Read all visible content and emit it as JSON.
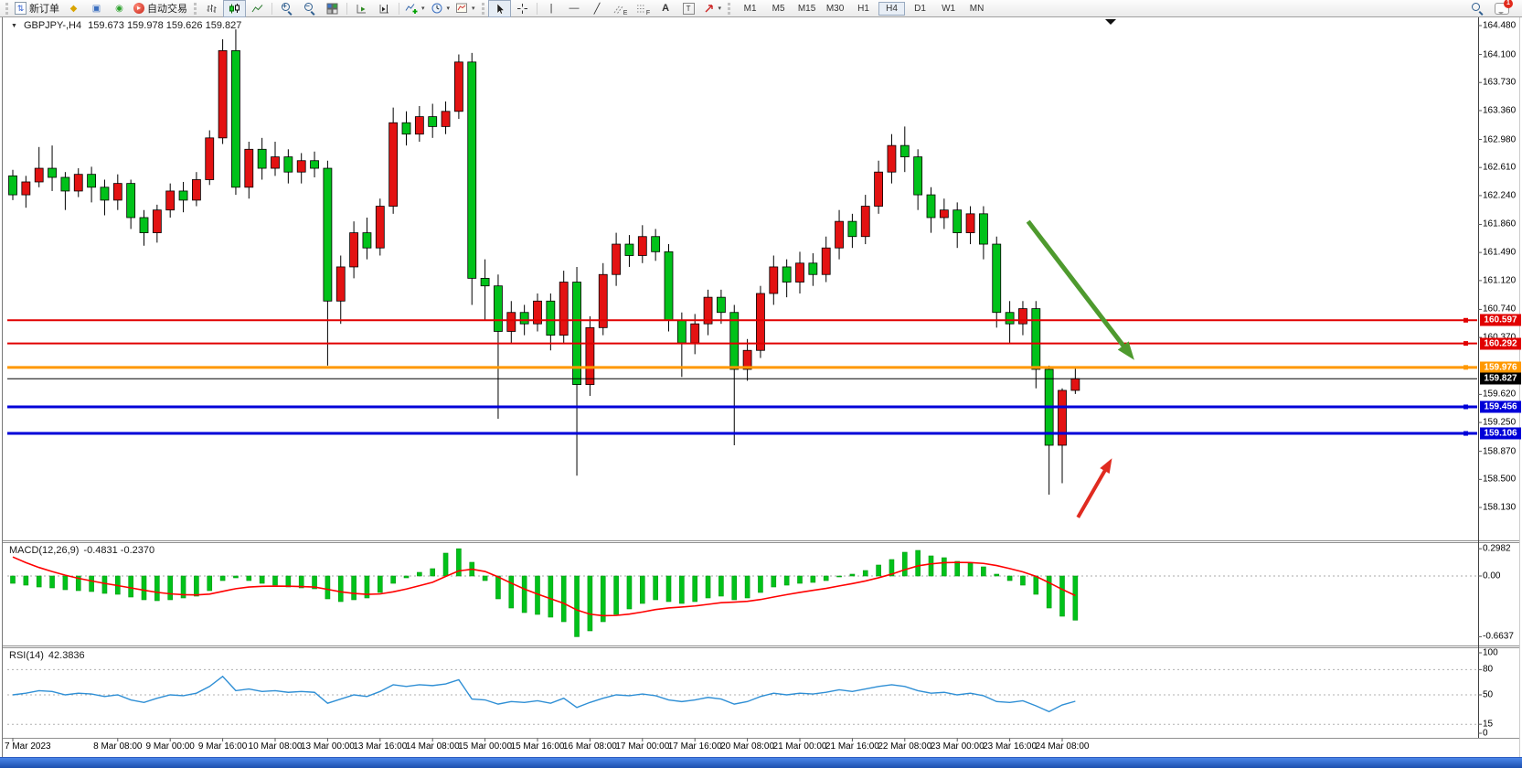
{
  "toolbar": {
    "new_order_label": "新订单",
    "autotrading_label": "自动交易",
    "timeframes": [
      "M1",
      "M5",
      "M15",
      "M30",
      "H1",
      "H4",
      "D1",
      "W1",
      "MN"
    ],
    "active_timeframe": "H4",
    "notification_count": "1",
    "text_tool_label": "A",
    "label_tool_label": "T",
    "channel_tool_label": "E",
    "fibo_tool_label": "F"
  },
  "chart": {
    "symbol_period": "GBPJPY-,H4",
    "ohlc": "159.673 159.978 159.626 159.827"
  },
  "indicators": {
    "macd": {
      "name": "MACD(12,26,9)",
      "values": "-0.4831 -0.2370"
    },
    "rsi": {
      "name": "RSI(14)",
      "value": "42.3836"
    }
  },
  "price_axis": {
    "labels": [
      "164.480",
      "164.100",
      "163.730",
      "163.360",
      "162.980",
      "162.610",
      "162.240",
      "161.860",
      "161.490",
      "161.120",
      "160.740",
      "160.370",
      "159.620",
      "159.250",
      "158.870",
      "158.500",
      "158.130"
    ]
  },
  "macd_axis": {
    "labels": [
      "0.2982",
      "0.00",
      "-0.6637"
    ]
  },
  "rsi_axis": {
    "labels": [
      "100",
      "80",
      "50",
      "15",
      "0"
    ]
  },
  "time_axis": {
    "labels": [
      {
        "text": "7 Mar 2023",
        "bar": 0
      },
      {
        "text": "8 Mar 08:00",
        "bar": 8
      },
      {
        "text": "9 Mar 00:00",
        "bar": 12
      },
      {
        "text": "9 Mar 16:00",
        "bar": 16
      },
      {
        "text": "10 Mar 08:00",
        "bar": 20
      },
      {
        "text": "13 Mar 00:00",
        "bar": 24
      },
      {
        "text": "13 Mar 16:00",
        "bar": 28
      },
      {
        "text": "14 Mar 08:00",
        "bar": 32
      },
      {
        "text": "15 Mar 00:00",
        "bar": 36
      },
      {
        "text": "15 Mar 16:00",
        "bar": 40
      },
      {
        "text": "16 Mar 08:00",
        "bar": 44
      },
      {
        "text": "17 Mar 00:00",
        "bar": 48
      },
      {
        "text": "17 Mar 16:00",
        "bar": 52
      },
      {
        "text": "20 Mar 08:00",
        "bar": 56
      },
      {
        "text": "21 Mar 00:00",
        "bar": 60
      },
      {
        "text": "21 Mar 16:00",
        "bar": 64
      },
      {
        "text": "22 Mar 08:00",
        "bar": 68
      },
      {
        "text": "23 Mar 00:00",
        "bar": 72
      },
      {
        "text": "23 Mar 16:00",
        "bar": 76
      },
      {
        "text": "24 Mar 08:00",
        "bar": 80
      }
    ]
  },
  "levels": [
    {
      "price": 160.597,
      "label": "160.597",
      "color": "#e10000",
      "width": 2
    },
    {
      "price": 160.292,
      "label": "160.292",
      "color": "#e10000",
      "width": 2
    },
    {
      "price": 159.976,
      "label": "159.976",
      "color": "#ff9800",
      "width": 3
    },
    {
      "price": 159.827,
      "label": "159.827",
      "color": "#000000",
      "width": 1
    },
    {
      "price": 159.456,
      "label": "159.456",
      "color": "#0000d8",
      "width": 3
    },
    {
      "price": 159.106,
      "label": "159.106",
      "color": "#0000d8",
      "width": 3
    }
  ],
  "chart_data": {
    "type": "candlestick",
    "symbol": "GBPJPY-",
    "timeframe": "H4",
    "title": "GBPJPY-,H4 159.673 159.978 159.626 159.827",
    "visible_range": {
      "start": "7 Mar 2023 00:00",
      "end": "24 Mar 2023 12:00",
      "price_min": 158.13,
      "price_max": 164.48
    },
    "up_candles_are": "red",
    "down_candles_are": "green",
    "candle_format": [
      "open",
      "high",
      "low",
      "close"
    ],
    "candles": [
      [
        162.5,
        162.58,
        162.18,
        162.25
      ],
      [
        162.25,
        162.5,
        162.08,
        162.42
      ],
      [
        162.42,
        162.88,
        162.35,
        162.6
      ],
      [
        162.6,
        162.9,
        162.3,
        162.48
      ],
      [
        162.48,
        162.55,
        162.05,
        162.3
      ],
      [
        162.3,
        162.6,
        162.22,
        162.52
      ],
      [
        162.52,
        162.62,
        162.15,
        162.35
      ],
      [
        162.35,
        162.45,
        161.98,
        162.18
      ],
      [
        162.18,
        162.52,
        162.05,
        162.4
      ],
      [
        162.4,
        162.45,
        161.8,
        161.95
      ],
      [
        161.95,
        162.05,
        161.58,
        161.75
      ],
      [
        161.75,
        162.12,
        161.62,
        162.05
      ],
      [
        162.05,
        162.4,
        161.95,
        162.3
      ],
      [
        162.3,
        162.42,
        162.02,
        162.18
      ],
      [
        162.18,
        162.55,
        162.1,
        162.45
      ],
      [
        162.45,
        163.1,
        162.38,
        163.0
      ],
      [
        163.0,
        164.3,
        162.92,
        164.15
      ],
      [
        164.15,
        164.43,
        162.25,
        162.35
      ],
      [
        162.35,
        162.95,
        162.2,
        162.85
      ],
      [
        162.85,
        163.0,
        162.45,
        162.6
      ],
      [
        162.6,
        162.95,
        162.5,
        162.75
      ],
      [
        162.75,
        162.85,
        162.4,
        162.55
      ],
      [
        162.55,
        162.8,
        162.4,
        162.7
      ],
      [
        162.7,
        162.82,
        162.48,
        162.6
      ],
      [
        162.6,
        162.7,
        160.0,
        160.85
      ],
      [
        160.85,
        161.45,
        160.55,
        161.3
      ],
      [
        161.3,
        161.9,
        161.15,
        161.75
      ],
      [
        161.75,
        161.95,
        161.4,
        161.55
      ],
      [
        161.55,
        162.2,
        161.45,
        162.1
      ],
      [
        162.1,
        163.4,
        162.0,
        163.2
      ],
      [
        163.2,
        163.35,
        162.9,
        163.05
      ],
      [
        163.05,
        163.42,
        162.95,
        163.28
      ],
      [
        163.28,
        163.45,
        163.0,
        163.15
      ],
      [
        163.15,
        163.48,
        163.05,
        163.35
      ],
      [
        163.35,
        164.1,
        163.25,
        164.0
      ],
      [
        164.0,
        164.12,
        160.8,
        161.15
      ],
      [
        161.15,
        161.4,
        160.6,
        161.05
      ],
      [
        161.05,
        161.2,
        159.3,
        160.45
      ],
      [
        160.45,
        160.85,
        160.3,
        160.7
      ],
      [
        160.7,
        160.8,
        160.4,
        160.55
      ],
      [
        160.55,
        160.95,
        160.45,
        160.85
      ],
      [
        160.85,
        160.95,
        160.2,
        160.4
      ],
      [
        160.4,
        161.25,
        160.3,
        161.1
      ],
      [
        161.1,
        161.3,
        158.55,
        159.75
      ],
      [
        159.75,
        160.65,
        159.6,
        160.5
      ],
      [
        160.5,
        161.35,
        160.4,
        161.2
      ],
      [
        161.2,
        161.75,
        161.05,
        161.6
      ],
      [
        161.6,
        161.72,
        161.3,
        161.45
      ],
      [
        161.45,
        161.85,
        161.35,
        161.7
      ],
      [
        161.7,
        161.8,
        161.38,
        161.5
      ],
      [
        161.5,
        161.6,
        160.45,
        160.6
      ],
      [
        160.6,
        160.7,
        159.85,
        160.3
      ],
      [
        160.3,
        160.68,
        160.15,
        160.55
      ],
      [
        160.55,
        161.0,
        160.4,
        160.9
      ],
      [
        160.9,
        161.0,
        160.55,
        160.7
      ],
      [
        160.7,
        160.8,
        158.95,
        159.95
      ],
      [
        159.95,
        160.35,
        159.8,
        160.2
      ],
      [
        160.2,
        161.05,
        160.1,
        160.95
      ],
      [
        160.95,
        161.45,
        160.8,
        161.3
      ],
      [
        161.3,
        161.4,
        160.9,
        161.1
      ],
      [
        161.1,
        161.5,
        160.95,
        161.35
      ],
      [
        161.35,
        161.48,
        161.05,
        161.2
      ],
      [
        161.2,
        161.7,
        161.1,
        161.55
      ],
      [
        161.55,
        162.05,
        161.4,
        161.9
      ],
      [
        161.9,
        162.0,
        161.55,
        161.7
      ],
      [
        161.7,
        162.25,
        161.6,
        162.1
      ],
      [
        162.1,
        162.7,
        162.0,
        162.55
      ],
      [
        162.55,
        163.05,
        162.4,
        162.9
      ],
      [
        162.9,
        163.15,
        162.55,
        162.75
      ],
      [
        162.75,
        162.85,
        162.05,
        162.25
      ],
      [
        162.25,
        162.35,
        161.75,
        161.95
      ],
      [
        161.95,
        162.2,
        161.8,
        162.05
      ],
      [
        162.05,
        162.15,
        161.55,
        161.75
      ],
      [
        161.75,
        162.1,
        161.6,
        162.0
      ],
      [
        162.0,
        162.1,
        161.4,
        161.6
      ],
      [
        161.6,
        161.7,
        160.5,
        160.7
      ],
      [
        160.7,
        160.85,
        160.3,
        160.55
      ],
      [
        160.55,
        160.85,
        160.4,
        160.75
      ],
      [
        160.75,
        160.85,
        159.7,
        159.95
      ],
      [
        159.95,
        160.0,
        158.3,
        158.95
      ],
      [
        158.95,
        159.7,
        158.45,
        159.673
      ],
      [
        159.673,
        159.978,
        159.626,
        159.827
      ]
    ],
    "macd": {
      "params": "12,26,9",
      "last_main": -0.4831,
      "last_signal": -0.237,
      "signal_seed": 0.28,
      "scale": {
        "max": 0.2982,
        "min": -0.6637
      },
      "histogram": [
        -0.08,
        -0.1,
        -0.12,
        -0.13,
        -0.15,
        -0.16,
        -0.17,
        -0.19,
        -0.2,
        -0.23,
        -0.26,
        -0.27,
        -0.26,
        -0.24,
        -0.22,
        -0.16,
        -0.05,
        -0.02,
        -0.05,
        -0.08,
        -0.1,
        -0.12,
        -0.13,
        -0.14,
        -0.25,
        -0.28,
        -0.26,
        -0.24,
        -0.18,
        -0.08,
        -0.02,
        0.04,
        0.08,
        0.25,
        0.2982,
        0.15,
        -0.05,
        -0.25,
        -0.35,
        -0.4,
        -0.42,
        -0.45,
        -0.5,
        -0.6637,
        -0.6,
        -0.5,
        -0.42,
        -0.36,
        -0.3,
        -0.26,
        -0.28,
        -0.3,
        -0.28,
        -0.24,
        -0.22,
        -0.26,
        -0.24,
        -0.18,
        -0.12,
        -0.1,
        -0.08,
        -0.07,
        -0.05,
        0,
        0.02,
        0.06,
        0.12,
        0.18,
        0.26,
        0.28,
        0.22,
        0.2,
        0.16,
        0.14,
        0.1,
        0.02,
        -0.05,
        -0.1,
        -0.2,
        -0.35,
        -0.44,
        -0.4831
      ]
    },
    "rsi": {
      "period": 14,
      "last": 42.3836,
      "levels": [
        80,
        50,
        15
      ],
      "values": [
        50,
        52,
        55,
        54,
        50,
        52,
        51,
        48,
        50,
        44,
        41,
        46,
        50,
        49,
        52,
        60,
        72,
        55,
        57,
        54,
        55,
        53,
        54,
        53,
        40,
        45,
        50,
        48,
        54,
        62,
        60,
        62,
        61,
        63,
        68,
        45,
        44,
        39,
        42,
        41,
        43,
        40,
        46,
        35,
        41,
        46,
        50,
        49,
        51,
        49,
        44,
        42,
        44,
        47,
        45,
        39,
        42,
        48,
        52,
        50,
        52,
        51,
        53,
        56,
        54,
        57,
        60,
        62,
        60,
        55,
        52,
        53,
        50,
        52,
        49,
        42,
        41,
        43,
        37,
        30,
        38,
        42.38
      ]
    },
    "horizontal_lines": [
      {
        "price": 160.597,
        "color": "#e10000"
      },
      {
        "price": 160.292,
        "color": "#e10000"
      },
      {
        "price": 159.976,
        "color": "#ff9800"
      },
      {
        "price": 159.827,
        "color": "#000000"
      },
      {
        "price": 159.456,
        "color": "#0000d8"
      },
      {
        "price": 159.106,
        "color": "#0000d8"
      }
    ],
    "annotations": [
      {
        "type": "arrow",
        "name": "down-trend-arrow",
        "color": "#4e9a2e",
        "stroke_width": 5,
        "from": {
          "bar": 77.4,
          "price": 161.9
        },
        "to": {
          "bar": 85.2,
          "price": 160.14
        }
      },
      {
        "type": "arrow",
        "name": "up-bounce-arrow",
        "color": "#e02b20",
        "stroke_width": 4,
        "from": {
          "bar": 81.2,
          "price": 158.0
        },
        "to": {
          "bar": 83.6,
          "price": 158.72
        }
      }
    ],
    "colors": {
      "bull": "#e31212",
      "bear": "#00c21a",
      "wick": "#000000",
      "macd_histogram": "#00c21a",
      "macd_signal": "#ff0000",
      "rsi": "#2f8fd5"
    }
  }
}
